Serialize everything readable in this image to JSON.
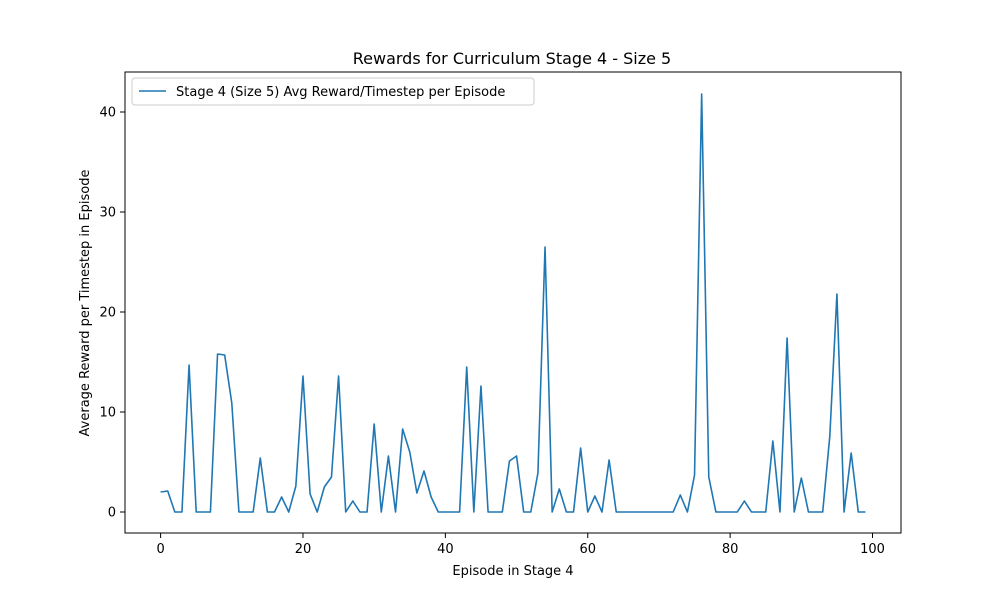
{
  "chart_data": {
    "type": "line",
    "title": "Rewards for Curriculum Stage 4 - Size 5",
    "xlabel": "Episode in Stage 4",
    "ylabel": "Average Reward per Timestep in Episode",
    "xlim": [
      -5,
      104
    ],
    "ylim": [
      -2.1,
      44.0
    ],
    "xticks": [
      0,
      20,
      40,
      60,
      80,
      100
    ],
    "yticks": [
      0,
      10,
      20,
      30,
      40
    ],
    "grid": false,
    "legend_position": "top-left",
    "series": [
      {
        "name": "Stage 4 (Size 5) Avg Reward/Timestep per Episode",
        "color": "#1f77b4",
        "x": [
          0,
          1,
          2,
          3,
          4,
          5,
          6,
          7,
          8,
          9,
          10,
          11,
          12,
          13,
          14,
          15,
          16,
          17,
          18,
          19,
          20,
          21,
          22,
          23,
          24,
          25,
          26,
          27,
          28,
          29,
          30,
          31,
          32,
          33,
          34,
          35,
          36,
          37,
          38,
          39,
          40,
          41,
          42,
          43,
          44,
          45,
          46,
          47,
          48,
          49,
          50,
          51,
          52,
          53,
          54,
          55,
          56,
          57,
          58,
          59,
          60,
          61,
          62,
          63,
          64,
          65,
          66,
          67,
          68,
          69,
          70,
          71,
          72,
          73,
          74,
          75,
          76,
          77,
          78,
          79,
          80,
          81,
          82,
          83,
          84,
          85,
          86,
          87,
          88,
          89,
          90,
          91,
          92,
          93,
          94,
          95,
          96,
          97,
          98,
          99
        ],
        "values": [
          2.0,
          2.1,
          0,
          0,
          14.7,
          0,
          0,
          0,
          15.8,
          15.7,
          10.9,
          0,
          0,
          0,
          5.4,
          0,
          0,
          1.5,
          0,
          2.6,
          13.6,
          1.8,
          0,
          2.5,
          3.5,
          13.6,
          0,
          1.1,
          0,
          0,
          8.8,
          0,
          5.6,
          0,
          8.3,
          6.0,
          1.9,
          4.1,
          1.5,
          0,
          0,
          0,
          0,
          14.5,
          0,
          12.6,
          0,
          0,
          0,
          5.1,
          5.6,
          0,
          0,
          3.9,
          26.5,
          0,
          2.3,
          0,
          0,
          6.4,
          0,
          1.6,
          0,
          5.2,
          0,
          0,
          0,
          0,
          0,
          0,
          0,
          0,
          0,
          1.7,
          0,
          3.7,
          41.8,
          3.5,
          0,
          0,
          0,
          0,
          1.1,
          0,
          0,
          0,
          7.1,
          0,
          17.4,
          0,
          3.4,
          0,
          0,
          0,
          7.6,
          21.8,
          0,
          5.9,
          0,
          0
        ]
      }
    ]
  }
}
